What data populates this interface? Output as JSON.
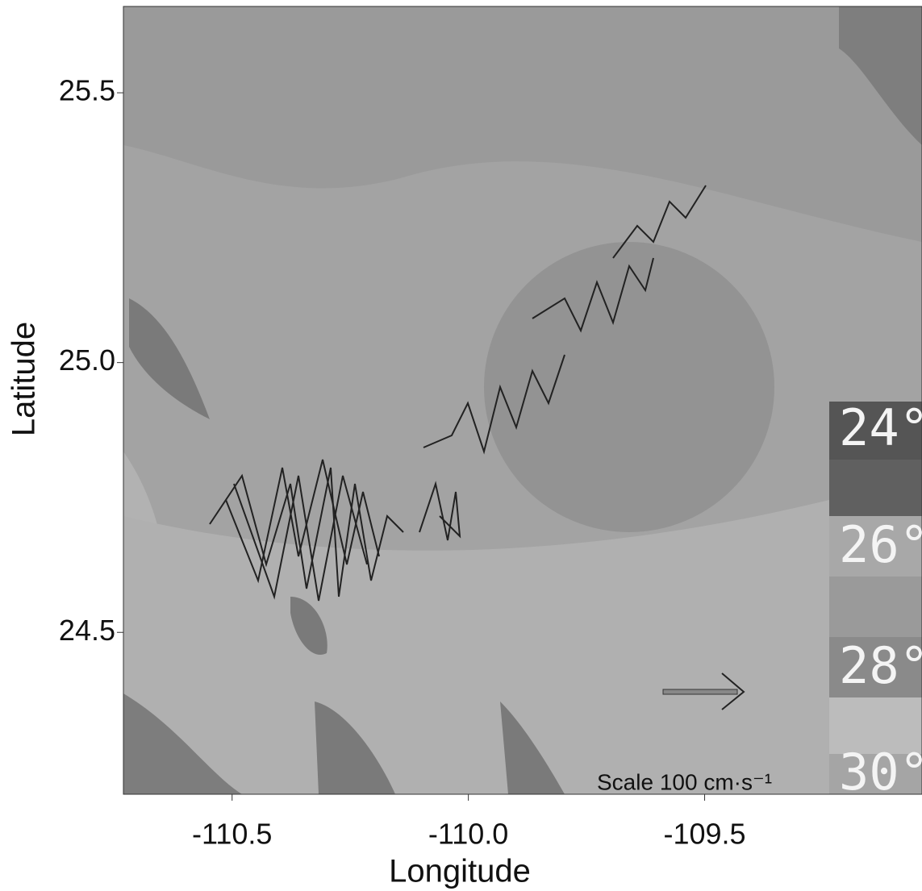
{
  "chart_data": {
    "type": "vector-map",
    "x_label": "Longitude",
    "y_label": "Latitude",
    "xlim": [
      -110.73,
      -109.04
    ],
    "xticks": [
      {
        "value": -110.5,
        "label": "-110.5"
      },
      {
        "value": -110.0,
        "label": "-110.0"
      },
      {
        "value": -109.5,
        "label": "-109.5"
      }
    ],
    "ylim": [
      24.2,
      25.66
    ],
    "yticks": [
      25.5,
      {
        "value": 25.0,
        "label": "25.0"
      },
      24.5
    ],
    "scale_label": "Scale  100 cm·s⁻¹",
    "colorbar_labels": [
      "24°",
      "26°",
      "28°",
      "30°"
    ]
  }
}
